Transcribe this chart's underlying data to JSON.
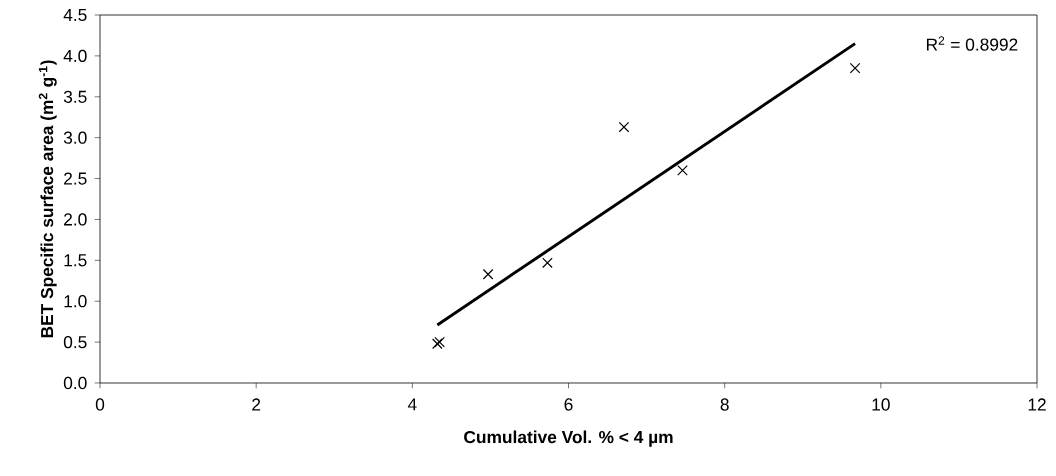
{
  "chart_data": {
    "type": "scatter",
    "xlabel": "Cumulative Vol. % < 4 µm",
    "ylabel": "BET Specific surface area (m$^{2}$ g$^{-1}$)",
    "annotations": [
      "R$^{2}$ = 0.8992"
    ],
    "series": [
      {
        "marker": "cross",
        "color": "#000000",
        "x": [
          4.32,
          4.35,
          4.97,
          5.73,
          6.71,
          7.46,
          9.67
        ],
        "values": [
          0.48,
          0.5,
          1.33,
          1.47,
          3.13,
          2.6,
          3.85
        ]
      },
      {
        "type": "line",
        "marker": "none",
        "color": "#000000",
        "x": [
          4.32,
          9.67
        ],
        "values": [
          0.71,
          4.15
        ]
      }
    ],
    "line_style": "solid",
    "grid": false,
    "legend": false,
    "xlim": [
      0,
      12
    ],
    "xticks": [
      0,
      2,
      4,
      6,
      8,
      10,
      12
    ],
    "ylim": [
      0,
      4.5
    ],
    "yticks": [
      {
        "value": 0,
        "label": "0.0"
      },
      {
        "value": 0.5,
        "label": "0.5"
      },
      {
        "value": 1,
        "label": "1.0"
      },
      {
        "value": 1.5,
        "label": "1.5"
      },
      {
        "value": 2,
        "label": "2.0"
      },
      {
        "value": 2.5,
        "label": "2.5"
      },
      {
        "value": 3,
        "label": "3.0"
      },
      {
        "value": 3.5,
        "label": "3.5"
      },
      {
        "value": 4,
        "label": "4.0"
      },
      {
        "value": 4.5,
        "label": "4.5"
      }
    ]
  }
}
